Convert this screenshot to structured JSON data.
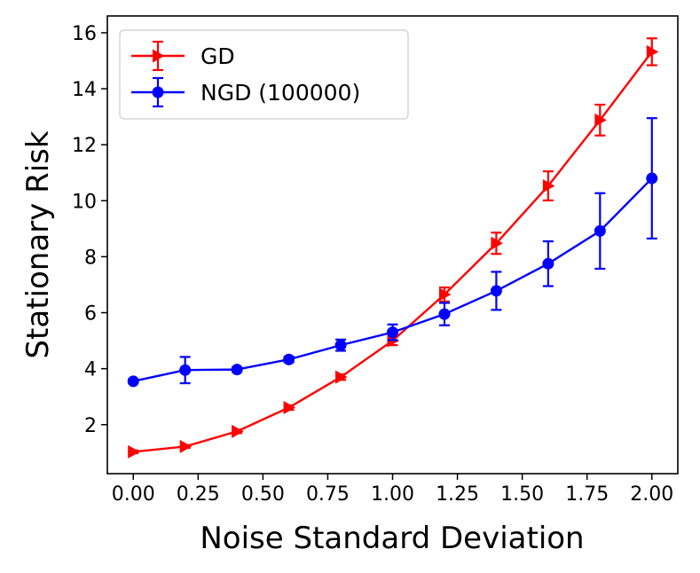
{
  "chart_data": {
    "type": "line",
    "title": "",
    "xlabel": "Noise Standard Deviation",
    "ylabel": "Stationary Risk",
    "xlim": [
      -0.1,
      2.1
    ],
    "ylim": [
      0.25,
      16.6
    ],
    "xticks": [
      0.0,
      0.25,
      0.5,
      0.75,
      1.0,
      1.25,
      1.5,
      1.75,
      2.0
    ],
    "xtick_labels": [
      "0.00",
      "0.25",
      "0.50",
      "0.75",
      "1.00",
      "1.25",
      "1.50",
      "1.75",
      "2.00"
    ],
    "yticks": [
      2,
      4,
      6,
      8,
      10,
      12,
      14,
      16
    ],
    "ytick_labels": [
      "2",
      "4",
      "6",
      "8",
      "10",
      "12",
      "14",
      "16"
    ],
    "grid": false,
    "legend_position": "top-left",
    "x": [
      0.0,
      0.2,
      0.4,
      0.6,
      0.8,
      1.0,
      1.2,
      1.4,
      1.6,
      1.8,
      2.0
    ],
    "series": [
      {
        "name": "GD",
        "color": "#ff0000",
        "marker": "triangle-right",
        "values": [
          1.03,
          1.22,
          1.76,
          2.61,
          3.7,
          5.0,
          6.65,
          8.48,
          10.53,
          12.88,
          15.32
        ],
        "errors": [
          0.05,
          0.05,
          0.06,
          0.08,
          0.1,
          0.16,
          0.25,
          0.38,
          0.52,
          0.55,
          0.48
        ]
      },
      {
        "name": "NGD (100000)",
        "color": "#0000ff",
        "marker": "circle",
        "values": [
          3.55,
          3.95,
          3.97,
          4.33,
          4.84,
          5.3,
          5.95,
          6.78,
          7.75,
          8.92,
          10.8
        ],
        "errors": [
          0.05,
          0.47,
          0.08,
          0.1,
          0.2,
          0.28,
          0.4,
          0.68,
          0.8,
          1.35,
          2.15
        ]
      }
    ]
  }
}
